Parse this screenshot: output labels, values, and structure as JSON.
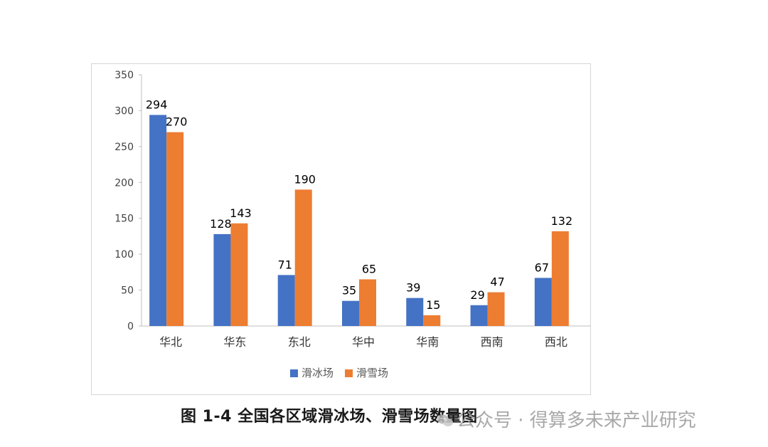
{
  "chart_data": {
    "type": "bar",
    "categories": [
      "华北",
      "华东",
      "东北",
      "华中",
      "华南",
      "西南",
      "西北"
    ],
    "series": [
      {
        "name": "滑冰场",
        "values": [
          294,
          128,
          71,
          35,
          39,
          29,
          67
        ],
        "color": "#4472C4"
      },
      {
        "name": "滑雪场",
        "values": [
          270,
          143,
          190,
          65,
          15,
          47,
          132
        ],
        "color": "#ED7D31"
      }
    ],
    "ylim": [
      0,
      350
    ],
    "yticks": [
      0,
      50,
      100,
      150,
      200,
      250,
      300,
      350
    ],
    "legend_position": "bottom",
    "grid": false,
    "data_labels": true
  },
  "caption": "图 1-4  全国各区域滑冰场、滑雪场数量图",
  "watermark": "公众号 · 得算多未来产业研究"
}
